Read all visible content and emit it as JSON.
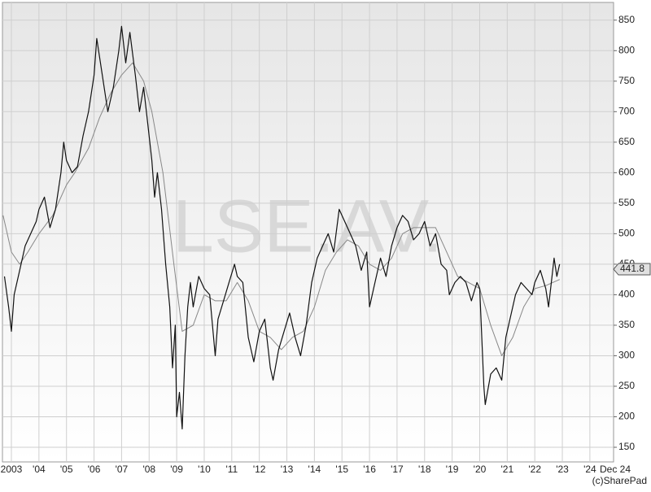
{
  "chart_data": {
    "type": "line",
    "watermark": "LSE.AV.",
    "copyright": "(c)SharePad",
    "last_value": 441.8,
    "xlim": [
      2002.675,
      2024.86
    ],
    "ylim": [
      126,
      879
    ],
    "yticks": [
      150,
      200,
      250,
      300,
      350,
      400,
      450,
      500,
      550,
      600,
      650,
      700,
      750,
      800,
      850
    ],
    "xticks": [
      {
        "value": 2003,
        "label": "2003"
      },
      {
        "value": 2004,
        "label": "'04"
      },
      {
        "value": 2005,
        "label": "'05"
      },
      {
        "value": 2006,
        "label": "'06"
      },
      {
        "value": 2007,
        "label": "'07"
      },
      {
        "value": 2008,
        "label": "'08"
      },
      {
        "value": 2009,
        "label": "'09"
      },
      {
        "value": 2010,
        "label": "'10"
      },
      {
        "value": 2011,
        "label": "'11"
      },
      {
        "value": 2012,
        "label": "'12"
      },
      {
        "value": 2013,
        "label": "'13"
      },
      {
        "value": 2014,
        "label": "'14"
      },
      {
        "value": 2015,
        "label": "'15"
      },
      {
        "value": 2016,
        "label": "'16"
      },
      {
        "value": 2017,
        "label": "'17"
      },
      {
        "value": 2018,
        "label": "'18"
      },
      {
        "value": 2019,
        "label": "'19"
      },
      {
        "value": 2020,
        "label": "'20"
      },
      {
        "value": 2021,
        "label": "'21"
      },
      {
        "value": 2022,
        "label": "'22"
      },
      {
        "value": 2023,
        "label": "'23"
      },
      {
        "value": 2024,
        "label": "'24"
      },
      {
        "value": 2024.92,
        "label": "Dec 24"
      }
    ],
    "grid": true,
    "series": [
      {
        "color": "#111111",
        "width": 1.2,
        "x": [
          2002.75,
          2002.9,
          2003.0,
          2003.1,
          2003.3,
          2003.5,
          2003.7,
          2003.9,
          2004.0,
          2004.2,
          2004.4,
          2004.6,
          2004.8,
          2004.9,
          2005.0,
          2005.2,
          2005.4,
          2005.6,
          2005.8,
          2006.0,
          2006.1,
          2006.3,
          2006.5,
          2006.7,
          2006.9,
          2007.0,
          2007.15,
          2007.3,
          2007.5,
          2007.65,
          2007.8,
          2007.95,
          2008.1,
          2008.2,
          2008.3,
          2008.45,
          2008.6,
          2008.75,
          2008.85,
          2008.95,
          2009.0,
          2009.1,
          2009.2,
          2009.3,
          2009.4,
          2009.5,
          2009.6,
          2009.8,
          2010.0,
          2010.2,
          2010.4,
          2010.5,
          2010.7,
          2010.9,
          2011.1,
          2011.2,
          2011.4,
          2011.6,
          2011.8,
          2012.0,
          2012.2,
          2012.4,
          2012.5,
          2012.7,
          2012.9,
          2013.1,
          2013.3,
          2013.5,
          2013.7,
          2013.9,
          2014.1,
          2014.3,
          2014.5,
          2014.7,
          2014.9,
          2015.1,
          2015.3,
          2015.5,
          2015.7,
          2015.9,
          2016.0,
          2016.2,
          2016.4,
          2016.6,
          2016.8,
          2017.0,
          2017.2,
          2017.4,
          2017.6,
          2017.8,
          2018.0,
          2018.2,
          2018.4,
          2018.6,
          2018.8,
          2018.9,
          2019.1,
          2019.3,
          2019.5,
          2019.7,
          2019.9,
          2020.0,
          2020.15,
          2020.2,
          2020.4,
          2020.6,
          2020.8,
          2020.95,
          2021.1,
          2021.3,
          2021.5,
          2021.7,
          2021.9,
          2022.0,
          2022.2,
          2022.4,
          2022.5,
          2022.7,
          2022.8,
          2022.9
        ],
        "values": [
          430,
          380,
          340,
          400,
          440,
          480,
          500,
          520,
          540,
          560,
          510,
          540,
          600,
          650,
          620,
          600,
          610,
          660,
          700,
          760,
          820,
          760,
          700,
          740,
          800,
          840,
          780,
          830,
          760,
          700,
          740,
          680,
          620,
          560,
          600,
          540,
          450,
          380,
          280,
          350,
          200,
          240,
          180,
          300,
          380,
          420,
          380,
          430,
          410,
          400,
          300,
          360,
          390,
          420,
          450,
          430,
          420,
          330,
          290,
          340,
          360,
          280,
          260,
          310,
          340,
          370,
          330,
          300,
          350,
          420,
          460,
          480,
          500,
          470,
          540,
          520,
          500,
          480,
          440,
          470,
          380,
          420,
          460,
          430,
          480,
          510,
          530,
          520,
          490,
          500,
          520,
          480,
          500,
          450,
          440,
          400,
          420,
          430,
          420,
          390,
          420,
          410,
          250,
          220,
          270,
          280,
          260,
          330,
          360,
          400,
          420,
          410,
          400,
          420,
          440,
          410,
          380,
          460,
          430,
          450
        ]
      },
      {
        "color": "#888888",
        "width": 1,
        "x": [
          2002.7,
          2003.0,
          2003.3,
          2003.6,
          2004.0,
          2004.5,
          2005.0,
          2005.3,
          2005.8,
          2006.2,
          2006.6,
          2007.0,
          2007.4,
          2007.8,
          2008.1,
          2008.5,
          2008.9,
          2009.2,
          2009.6,
          2010.0,
          2010.4,
          2010.8,
          2011.2,
          2011.6,
          2012.0,
          2012.4,
          2012.8,
          2013.2,
          2013.6,
          2014.0,
          2014.4,
          2014.8,
          2015.2,
          2015.6,
          2016.0,
          2016.4,
          2016.8,
          2017.2,
          2017.6,
          2018.0,
          2018.4,
          2018.8,
          2019.2,
          2019.6,
          2020.0,
          2020.4,
          2020.8,
          2021.2,
          2021.6,
          2022.0,
          2022.4,
          2022.9
        ],
        "values": [
          530,
          470,
          450,
          470,
          500,
          530,
          580,
          600,
          640,
          690,
          730,
          760,
          780,
          750,
          700,
          600,
          450,
          340,
          350,
          400,
          390,
          390,
          420,
          390,
          340,
          330,
          310,
          330,
          340,
          380,
          440,
          470,
          490,
          480,
          450,
          440,
          460,
          500,
          510,
          510,
          510,
          470,
          430,
          420,
          410,
          350,
          300,
          330,
          380,
          410,
          415,
          425
        ]
      }
    ]
  }
}
